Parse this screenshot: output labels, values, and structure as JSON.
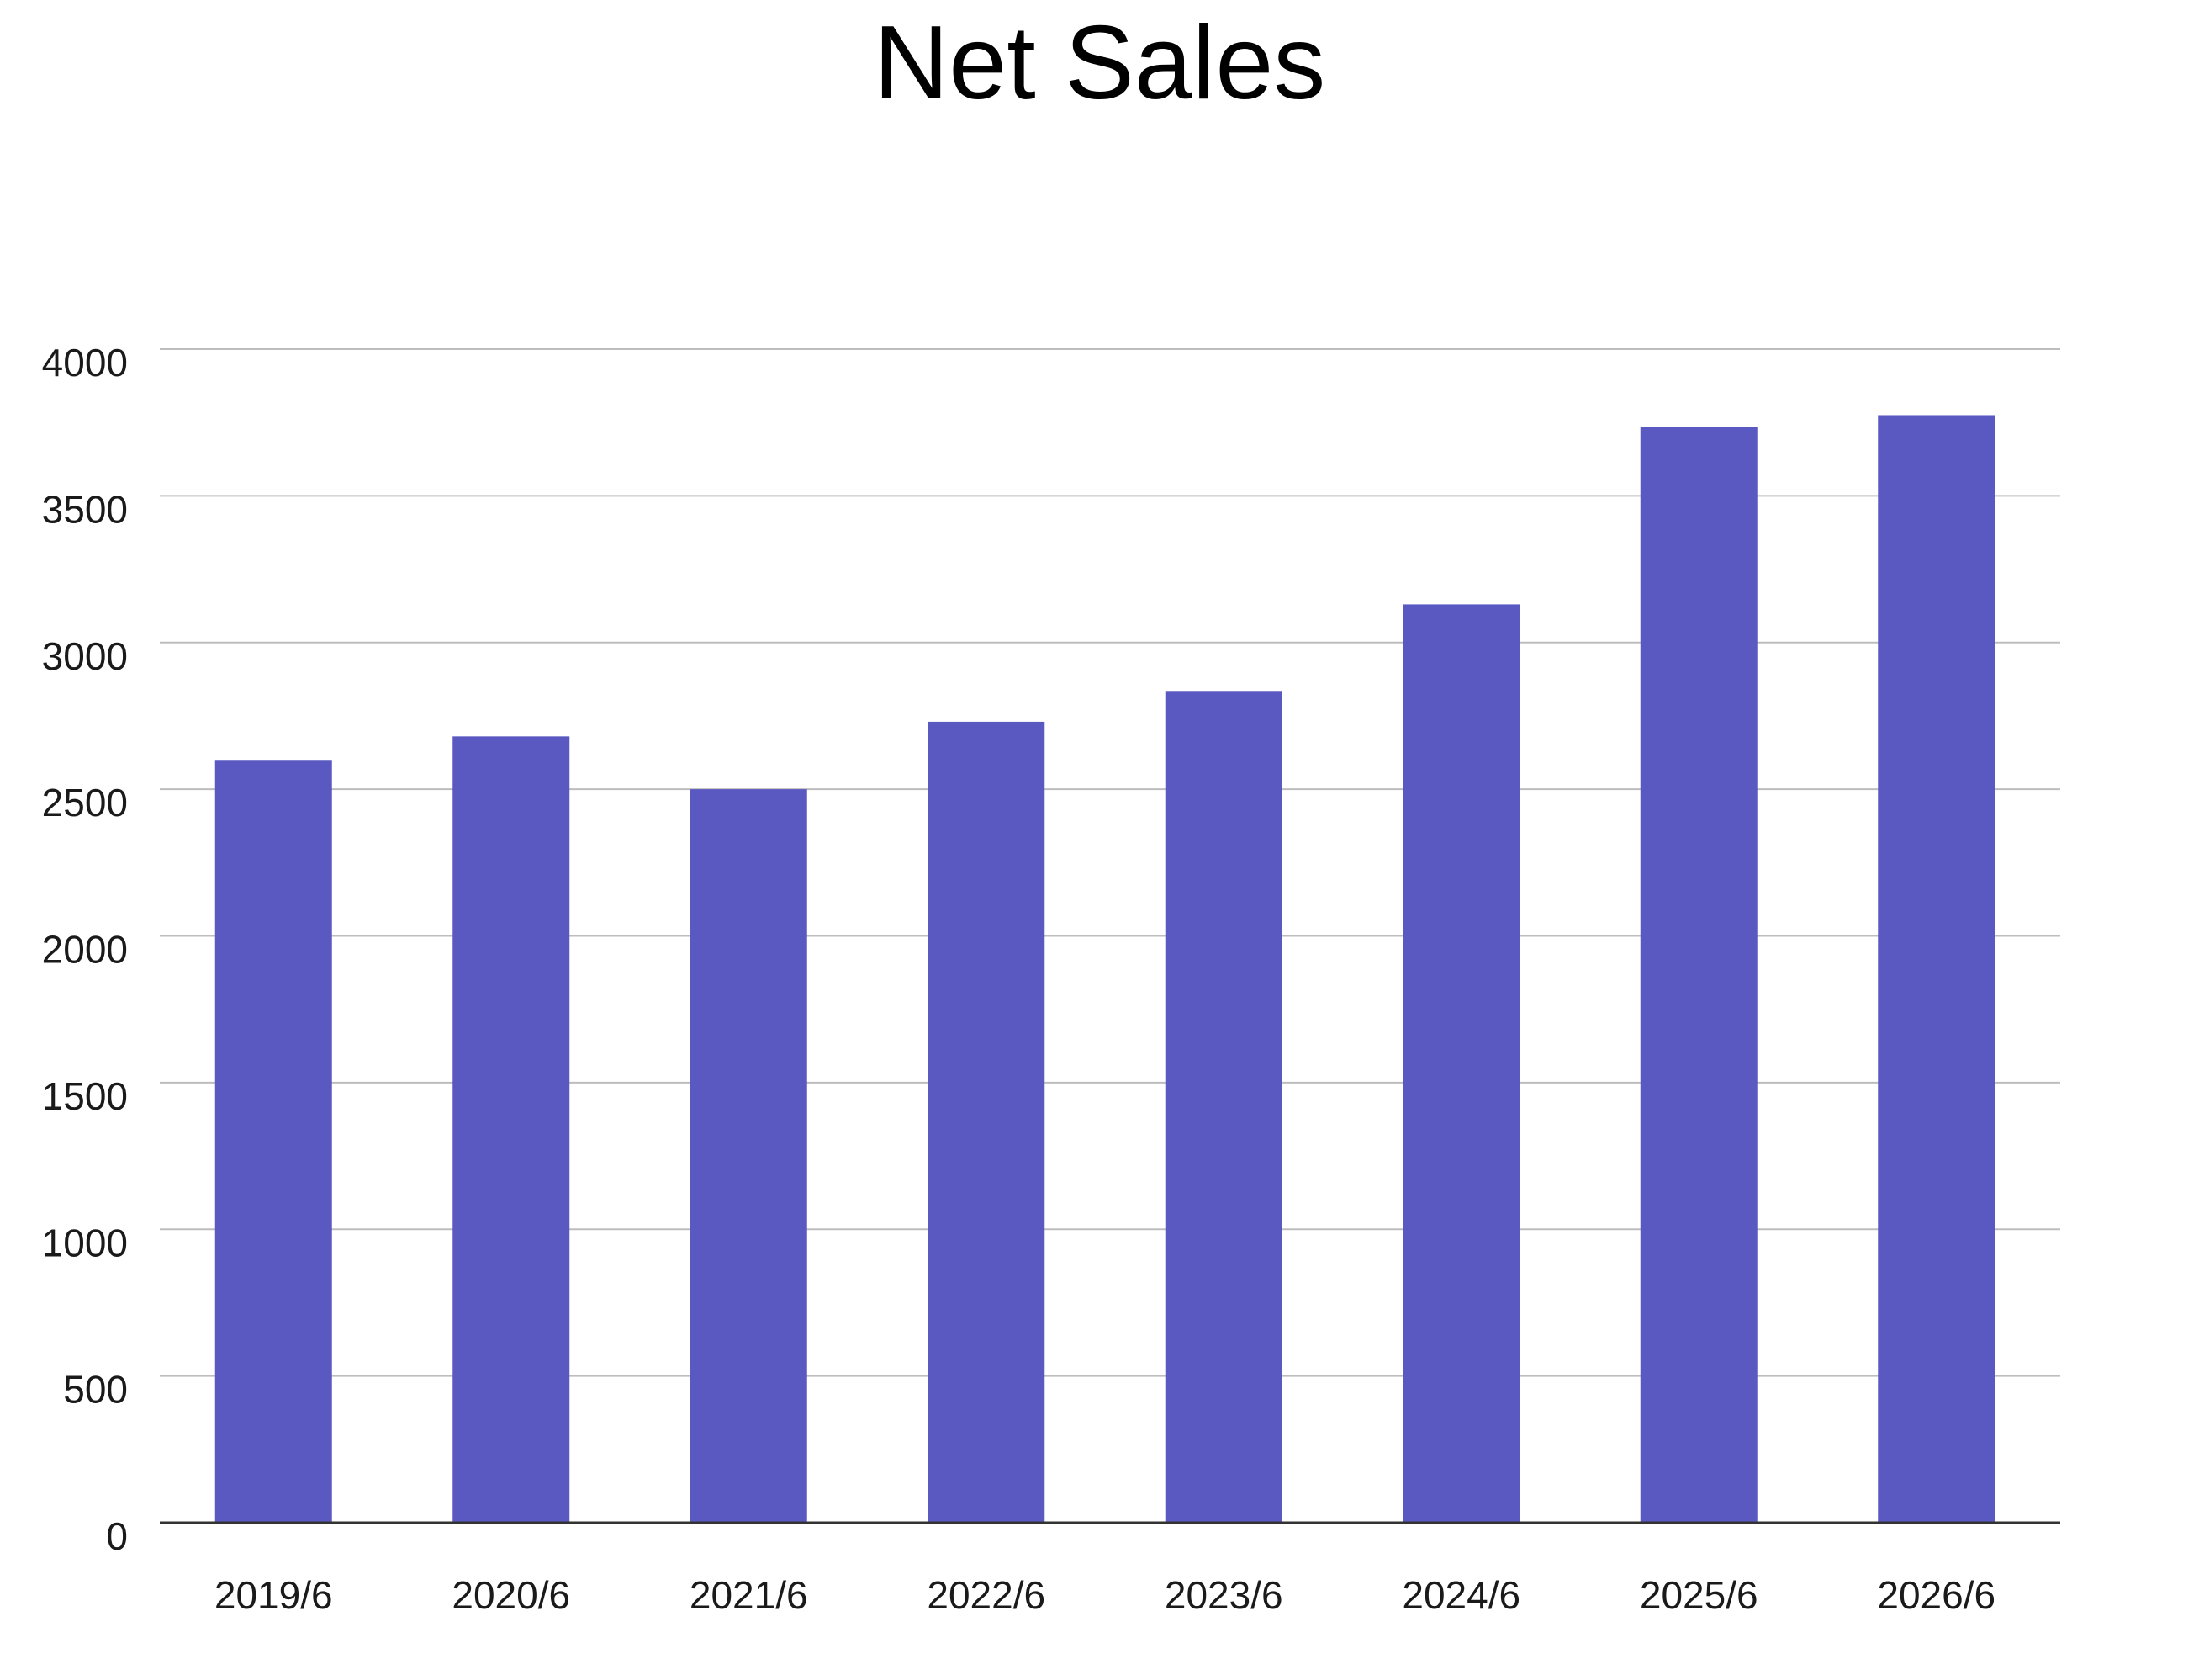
{
  "chart_data": {
    "type": "bar",
    "title": "Net Sales",
    "xlabel": "",
    "ylabel": "",
    "categories": [
      "2019/6",
      "2020/6",
      "2021/6",
      "2022/6",
      "2023/6",
      "2024/6",
      "2025/6",
      "2026/6"
    ],
    "series": [
      {
        "values": [
          2600,
          2680,
          2500,
          2730,
          2835,
          3130,
          3735,
          3775
        ]
      }
    ],
    "ylim": [
      0,
      4000
    ],
    "yticks": [
      "0",
      "500",
      "1000",
      "1500",
      "2000",
      "2500",
      "3000",
      "3500",
      "4000"
    ],
    "grid": true,
    "legend": "none",
    "colors": {
      "bar": "#5A58C1",
      "grid": "#BDBDBD",
      "axis": "#333333",
      "text": "#1A1A1A"
    }
  }
}
